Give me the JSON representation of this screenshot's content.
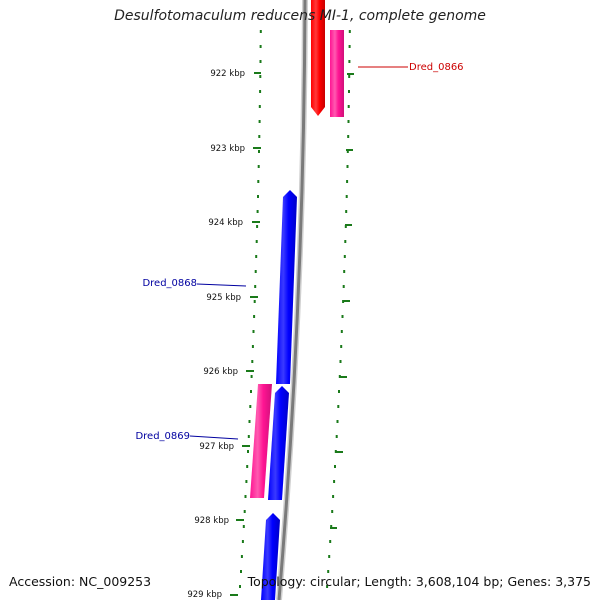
{
  "title": "Desulfotomaculum reducens MI-1, complete genome",
  "footer": {
    "accession_label": "Accession:",
    "accession": "NC_009253",
    "topology_label": "Topology:",
    "topology": "circular;",
    "length_label": "Length:",
    "length": "3,608,104 bp;",
    "genes_label": "Genes:",
    "genes": "3,375"
  },
  "colors": {
    "forward_gene": "#0000ff",
    "reverse_gene": "#ff0000",
    "rna_gene": "#ff1493",
    "ticks": "#1a7a1a",
    "backbone": "#808080",
    "label_forward": "#0000a0",
    "label_reverse": "#cc0000"
  },
  "ticks": [
    {
      "label": "922 kbp"
    },
    {
      "label": "923 kbp"
    },
    {
      "label": "924 kbp"
    },
    {
      "label": "925 kbp"
    },
    {
      "label": "926 kbp"
    },
    {
      "label": "927 kbp"
    },
    {
      "label": "928 kbp"
    },
    {
      "label": "929 kbp"
    }
  ],
  "gene_labels": [
    {
      "name": "Dred_0866",
      "color": "#cc0000"
    },
    {
      "name": "Dred_0868",
      "color": "#0000a0"
    },
    {
      "name": "Dred_0869",
      "color": "#0000a0"
    }
  ]
}
